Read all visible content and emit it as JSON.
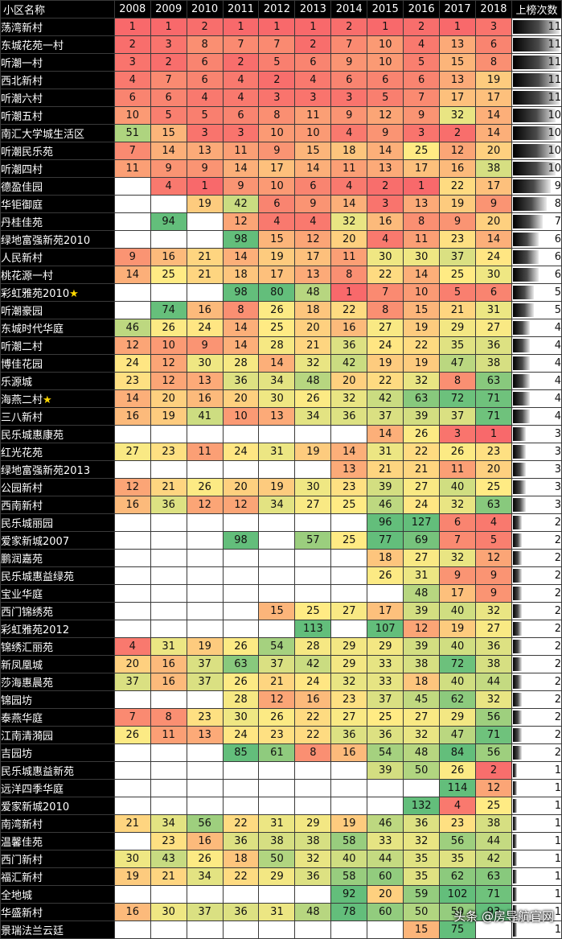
{
  "header": {
    "name_col": "小区名称",
    "years": [
      "2008",
      "2009",
      "2010",
      "2011",
      "2012",
      "2013",
      "2014",
      "2015",
      "2016",
      "2017",
      "2018"
    ],
    "count_col": "上榜次数"
  },
  "rows": [
    {
      "name": "荡湾新村",
      "star": false,
      "ranks": [
        1,
        1,
        2,
        1,
        1,
        1,
        2,
        1,
        2,
        1,
        3
      ],
      "count": 11
    },
    {
      "name": "东城花苑一村",
      "star": false,
      "ranks": [
        2,
        3,
        8,
        7,
        7,
        2,
        7,
        10,
        4,
        13,
        6
      ],
      "count": 11
    },
    {
      "name": "听潮一村",
      "star": false,
      "ranks": [
        3,
        2,
        6,
        2,
        5,
        6,
        9,
        10,
        5,
        15,
        8
      ],
      "count": 11
    },
    {
      "name": "西北新村",
      "star": false,
      "ranks": [
        4,
        7,
        6,
        4,
        2,
        4,
        6,
        6,
        6,
        13,
        19
      ],
      "count": 11
    },
    {
      "name": "听潮六村",
      "star": false,
      "ranks": [
        6,
        6,
        4,
        4,
        3,
        3,
        3,
        5,
        7,
        17,
        17
      ],
      "count": 11
    },
    {
      "name": "听潮五村",
      "star": false,
      "ranks": [
        10,
        5,
        5,
        6,
        8,
        11,
        9,
        12,
        9,
        32,
        14
      ],
      "count": 10
    },
    {
      "name": "南汇大学城生活区",
      "star": false,
      "ranks": [
        51,
        15,
        3,
        3,
        10,
        10,
        4,
        9,
        3,
        2,
        14
      ],
      "count": 10
    },
    {
      "name": "听潮民乐苑",
      "star": false,
      "ranks": [
        7,
        14,
        13,
        11,
        9,
        15,
        18,
        14,
        25,
        12,
        20
      ],
      "count": 10
    },
    {
      "name": "听潮四村",
      "star": false,
      "ranks": [
        11,
        9,
        9,
        14,
        17,
        14,
        11,
        13,
        17,
        16,
        38
      ],
      "count": 10
    },
    {
      "name": "德盈佳园",
      "star": false,
      "ranks": [
        null,
        4,
        1,
        9,
        10,
        6,
        4,
        2,
        1,
        22,
        17
      ],
      "count": 9
    },
    {
      "name": "华钜御庭",
      "star": false,
      "ranks": [
        null,
        null,
        19,
        42,
        6,
        9,
        14,
        3,
        13,
        19,
        9
      ],
      "count": 8
    },
    {
      "name": "丹桂佳苑",
      "star": false,
      "ranks": [
        null,
        94,
        null,
        12,
        4,
        4,
        32,
        16,
        8,
        9,
        20
      ],
      "count": 7
    },
    {
      "name": "绿地富强新苑2010",
      "star": false,
      "ranks": [
        null,
        null,
        null,
        98,
        15,
        12,
        20,
        4,
        11,
        23,
        14
      ],
      "count": 6
    },
    {
      "name": "人民新村",
      "star": false,
      "ranks": [
        9,
        16,
        21,
        14,
        19,
        17,
        11,
        30,
        30,
        37,
        24
      ],
      "count": 6
    },
    {
      "name": "桃花源一村",
      "star": false,
      "ranks": [
        14,
        25,
        21,
        18,
        17,
        13,
        8,
        22,
        14,
        25,
        30
      ],
      "count": 6
    },
    {
      "name": "彩虹雅苑2010",
      "star": true,
      "ranks": [
        null,
        null,
        null,
        98,
        80,
        48,
        1,
        7,
        10,
        5,
        6
      ],
      "count": 5
    },
    {
      "name": "听潮豪园",
      "star": false,
      "ranks": [
        null,
        74,
        16,
        8,
        26,
        18,
        22,
        8,
        15,
        21,
        31
      ],
      "count": 5
    },
    {
      "name": "东城时代华庭",
      "star": false,
      "ranks": [
        46,
        26,
        24,
        14,
        25,
        20,
        16,
        27,
        19,
        29,
        27
      ],
      "count": 4
    },
    {
      "name": "听潮二村",
      "star": false,
      "ranks": [
        12,
        10,
        9,
        14,
        28,
        21,
        36,
        24,
        22,
        35,
        36
      ],
      "count": 4
    },
    {
      "name": "博佳花园",
      "star": false,
      "ranks": [
        24,
        12,
        30,
        28,
        14,
        32,
        42,
        19,
        19,
        47,
        38
      ],
      "count": 4
    },
    {
      "name": "乐源城",
      "star": false,
      "ranks": [
        23,
        12,
        13,
        36,
        34,
        48,
        20,
        22,
        32,
        8,
        63
      ],
      "count": 4
    },
    {
      "name": "海燕二村",
      "star": true,
      "ranks": [
        14,
        20,
        16,
        20,
        30,
        26,
        32,
        42,
        63,
        72,
        71
      ],
      "count": 4
    },
    {
      "name": "三八新村",
      "star": false,
      "ranks": [
        16,
        19,
        41,
        10,
        13,
        34,
        36,
        37,
        39,
        37,
        71
      ],
      "count": 4
    },
    {
      "name": "民乐城惠康苑",
      "star": false,
      "ranks": [
        null,
        null,
        null,
        null,
        null,
        null,
        null,
        14,
        26,
        3,
        1
      ],
      "count": 3
    },
    {
      "name": "红光花苑",
      "star": false,
      "ranks": [
        27,
        23,
        11,
        24,
        31,
        19,
        14,
        31,
        22,
        26,
        23
      ],
      "count": 3
    },
    {
      "name": "绿地富强新苑2013",
      "star": false,
      "ranks": [
        null,
        null,
        null,
        null,
        null,
        null,
        13,
        21,
        21,
        11,
        20
      ],
      "count": 3
    },
    {
      "name": "公园新村",
      "star": false,
      "ranks": [
        12,
        21,
        26,
        20,
        19,
        30,
        23,
        39,
        27,
        40,
        25
      ],
      "count": 3
    },
    {
      "name": "西南新村",
      "star": false,
      "ranks": [
        16,
        36,
        12,
        12,
        34,
        27,
        25,
        46,
        24,
        32,
        63
      ],
      "count": 3
    },
    {
      "name": "民乐城丽园",
      "star": false,
      "ranks": [
        null,
        null,
        null,
        null,
        null,
        null,
        null,
        96,
        127,
        6,
        4
      ],
      "count": 2
    },
    {
      "name": "爱家新城2007",
      "star": false,
      "ranks": [
        null,
        null,
        null,
        98,
        null,
        57,
        25,
        77,
        69,
        7,
        5
      ],
      "count": 2
    },
    {
      "name": "鹏润嘉苑",
      "star": false,
      "ranks": [
        null,
        null,
        null,
        null,
        null,
        null,
        null,
        18,
        27,
        32,
        12
      ],
      "count": 2
    },
    {
      "name": "民乐城惠益绿苑",
      "star": false,
      "ranks": [
        null,
        null,
        null,
        null,
        null,
        null,
        null,
        26,
        31,
        9,
        9
      ],
      "count": 2
    },
    {
      "name": "宝业华庭",
      "star": false,
      "ranks": [
        null,
        null,
        null,
        null,
        null,
        null,
        null,
        null,
        48,
        17,
        9
      ],
      "count": 2
    },
    {
      "name": "西门锦绣苑",
      "star": false,
      "ranks": [
        null,
        null,
        null,
        null,
        15,
        25,
        27,
        17,
        39,
        40,
        32
      ],
      "count": 2
    },
    {
      "name": "彩虹雅苑2012",
      "star": false,
      "ranks": [
        null,
        null,
        null,
        null,
        null,
        113,
        null,
        107,
        12,
        19,
        27
      ],
      "count": 2
    },
    {
      "name": "锦绣汇丽苑",
      "star": false,
      "ranks": [
        4,
        31,
        19,
        26,
        54,
        28,
        29,
        29,
        39,
        40,
        36
      ],
      "count": 2
    },
    {
      "name": "新凤凰城",
      "star": false,
      "ranks": [
        20,
        16,
        37,
        63,
        37,
        42,
        29,
        33,
        38,
        72,
        38
      ],
      "count": 2
    },
    {
      "name": "莎海惠晨苑",
      "star": false,
      "ranks": [
        37,
        16,
        37,
        26,
        21,
        24,
        32,
        33,
        18,
        40,
        44
      ],
      "count": 2
    },
    {
      "name": "锦园坊",
      "star": false,
      "ranks": [
        null,
        null,
        null,
        28,
        12,
        16,
        23,
        37,
        45,
        62,
        32
      ],
      "count": 2
    },
    {
      "name": "泰燕华庭",
      "star": false,
      "ranks": [
        7,
        8,
        23,
        30,
        26,
        22,
        27,
        25,
        27,
        29,
        56
      ],
      "count": 2
    },
    {
      "name": "江南清漪园",
      "star": false,
      "ranks": [
        26,
        11,
        13,
        24,
        23,
        22,
        36,
        36,
        32,
        47,
        71
      ],
      "count": 2
    },
    {
      "name": "吉园坊",
      "star": false,
      "ranks": [
        null,
        null,
        null,
        85,
        61,
        8,
        16,
        54,
        48,
        84,
        56
      ],
      "count": 2
    },
    {
      "name": "民乐城惠益新苑",
      "star": false,
      "ranks": [
        null,
        null,
        null,
        null,
        null,
        null,
        null,
        39,
        50,
        26,
        2
      ],
      "count": 1
    },
    {
      "name": "远洋四季华庭",
      "star": false,
      "ranks": [
        null,
        null,
        null,
        null,
        null,
        null,
        null,
        null,
        null,
        114,
        12
      ],
      "count": 1
    },
    {
      "name": "爱家新城2010",
      "star": false,
      "ranks": [
        null,
        null,
        null,
        null,
        null,
        null,
        null,
        null,
        132,
        4,
        25
      ],
      "count": 1
    },
    {
      "name": "南湾新村",
      "star": false,
      "ranks": [
        21,
        34,
        56,
        22,
        31,
        29,
        19,
        46,
        36,
        23,
        38
      ],
      "count": 1
    },
    {
      "name": "温馨佳苑",
      "star": false,
      "ranks": [
        null,
        23,
        16,
        36,
        38,
        38,
        58,
        33,
        32,
        56,
        44
      ],
      "count": 1
    },
    {
      "name": "西门新村",
      "star": false,
      "ranks": [
        30,
        43,
        26,
        18,
        50,
        32,
        40,
        44,
        35,
        35,
        42
      ],
      "count": 1
    },
    {
      "name": "福汇新村",
      "star": false,
      "ranks": [
        19,
        21,
        34,
        22,
        29,
        36,
        58,
        60,
        35,
        62,
        63
      ],
      "count": 1
    },
    {
      "name": "全地城",
      "star": false,
      "ranks": [
        null,
        null,
        null,
        null,
        null,
        null,
        92,
        20,
        59,
        102,
        71
      ],
      "count": 1
    },
    {
      "name": "华盛新村",
      "star": false,
      "ranks": [
        16,
        30,
        37,
        36,
        31,
        48,
        78,
        60,
        50,
        59,
        93
      ],
      "count": 1
    },
    {
      "name": "景瑞法兰云廷",
      "star": false,
      "ranks": [
        null,
        null,
        null,
        null,
        null,
        null,
        null,
        null,
        15,
        75,
        null
      ],
      "count": 1
    }
  ],
  "watermark": "头条 @房导航官网",
  "star_glyph": "★",
  "colors": {
    "best": "#f8696b",
    "mid": "#ffeb84",
    "worst": "#63be7b",
    "empty": "#ffffff",
    "background": "#000000"
  }
}
